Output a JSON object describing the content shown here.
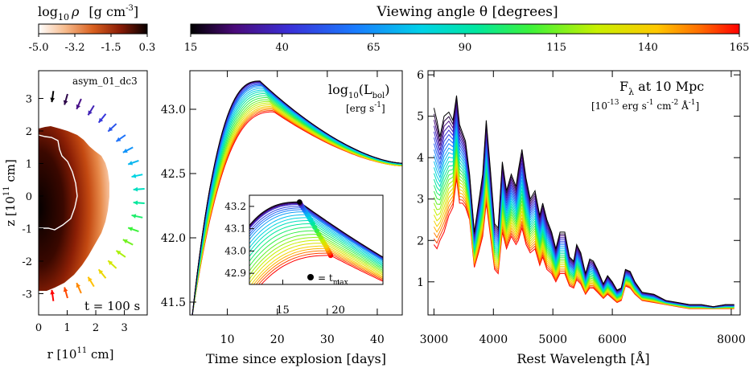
{
  "colorbars": {
    "density": {
      "label_main": "log",
      "label_sub": "10",
      "label_rho": "ρ",
      "label_units": "[g cm",
      "label_exp": "-3",
      "label_close": "]",
      "ticks": [
        "-5.0",
        "-3.2",
        "-1.5",
        "0.3"
      ]
    },
    "angle": {
      "label": "Viewing angle θ   [degrees]",
      "ticks": [
        "15",
        "40",
        "65",
        "90",
        "115",
        "140",
        "165"
      ]
    }
  },
  "panel_left": {
    "model_label": "asym_01_dc3",
    "time_label": "t = 100 s",
    "x_label_main": "r   [10",
    "x_label_exp": "11",
    "x_label_end": " cm]",
    "y_label_main": "z   [10",
    "y_label_exp": "11",
    "y_label_end": " cm]",
    "x_ticks": [
      "0",
      "1",
      "2",
      "3"
    ],
    "y_ticks": [
      "3",
      "2",
      "1",
      "0",
      "-1",
      "-2",
      "-3"
    ]
  },
  "panel_middle": {
    "x_label": "Time since explosion   [days]",
    "title_main": "log",
    "title_sub1": "10",
    "title_mid": "(L",
    "title_sub2": "bol",
    "title_end": ")",
    "units_main": "[erg s",
    "units_exp": "-1",
    "units_end": "]",
    "inset_legend_main": "= t",
    "inset_legend_sub": "max"
  },
  "panel_right": {
    "x_label": "Rest Wavelength   [Å]",
    "title_main": "F",
    "title_sub": "λ",
    "title_end": " at 10 Mpc",
    "units_main": "[10",
    "units_e1": "-13",
    "units_mid1": " erg s",
    "units_e2": "-1",
    "units_mid2": " cm",
    "units_e3": "-2",
    "units_mid3": " Å",
    "units_e4": "-1",
    "units_end": "]"
  },
  "chart_data": [
    {
      "type": "line",
      "title": "log10(Lbol) [erg s-1]",
      "xlabel": "Time since explosion [days]",
      "ylabel": "",
      "xlim": [
        2.5,
        45
      ],
      "ylim": [
        41.4,
        43.3
      ],
      "x_ticks": [
        10,
        20,
        30,
        40
      ],
      "y_ticks": [
        41.5,
        42.0,
        42.5,
        43.0
      ],
      "series_description": "viewing angles 15 to 165 degrees",
      "angles": [
        15,
        40,
        65,
        90,
        115,
        140,
        165
      ],
      "peak_log_l": [
        43.22,
        43.21,
        43.18,
        43.13,
        43.07,
        43.02,
        42.98
      ],
      "peak_time_days": [
        16.5,
        16.6,
        17.0,
        17.6,
        18.3,
        18.9,
        19.3
      ],
      "late_log_l_at_45d": [
        42.58,
        42.58,
        42.58,
        42.57,
        42.57,
        42.56,
        42.56
      ]
    },
    {
      "type": "line",
      "title": "inset",
      "xlim": [
        12,
        24
      ],
      "ylim": [
        42.85,
        43.25
      ],
      "x_ticks": [
        15,
        20
      ],
      "y_ticks": [
        42.9,
        43.0,
        43.1,
        43.2
      ]
    },
    {
      "type": "line",
      "title": "Fλ at 10 Mpc [10-13 erg s-1 cm-2 Å-1]",
      "xlabel": "Rest Wavelength [Å]",
      "xlim": [
        2900,
        8150
      ],
      "ylim": [
        0.2,
        6.1
      ],
      "x_ticks": [
        3000,
        4000,
        5000,
        6000,
        8000
      ],
      "y_ticks": [
        1,
        2,
        3,
        4,
        5,
        6
      ],
      "spectrum_15deg": {
        "x": [
          3000,
          3050,
          3100,
          3170,
          3250,
          3320,
          3380,
          3430,
          3480,
          3530,
          3600,
          3680,
          3750,
          3820,
          3880,
          3950,
          4020,
          4080,
          4150,
          4220,
          4300,
          4380,
          4420,
          4480,
          4550,
          4620,
          4700,
          4780,
          4830,
          4900,
          4980,
          5050,
          5120,
          5200,
          5280,
          5350,
          5400,
          5470,
          5550,
          5620,
          5680,
          5750,
          5850,
          5920,
          6000,
          6080,
          6150,
          6220,
          6300,
          6380,
          6500,
          6700,
          6900,
          7100,
          7300,
          7500,
          7700,
          7900,
          8050
        ],
        "y": [
          5.2,
          4.9,
          4.5,
          5.0,
          5.1,
          4.9,
          5.5,
          4.8,
          4.6,
          4.4,
          3.6,
          2.2,
          2.9,
          3.6,
          4.9,
          3.7,
          2.4,
          2.3,
          3.9,
          3.2,
          3.6,
          3.3,
          3.7,
          4.2,
          3.5,
          3.0,
          3.2,
          2.6,
          2.9,
          2.5,
          2.2,
          1.8,
          2.2,
          2.2,
          1.6,
          1.5,
          1.9,
          1.7,
          1.2,
          1.55,
          1.5,
          1.3,
          0.95,
          1.15,
          1.0,
          0.8,
          0.85,
          1.3,
          1.25,
          1.0,
          0.75,
          0.7,
          0.55,
          0.5,
          0.45,
          0.45,
          0.4,
          0.45,
          0.45
        ]
      },
      "spectrum_165deg": {
        "x": [
          3000,
          3050,
          3100,
          3170,
          3250,
          3320,
          3380,
          3430,
          3480,
          3530,
          3600,
          3680,
          3750,
          3820,
          3880,
          3950,
          4020,
          4080,
          4150,
          4220,
          4300,
          4380,
          4420,
          4480,
          4550,
          4620,
          4700,
          4780,
          4830,
          4900,
          4980,
          5050,
          5120,
          5200,
          5280,
          5350,
          5400,
          5470,
          5550,
          5620,
          5680,
          5750,
          5850,
          5920,
          6000,
          6080,
          6150,
          6220,
          6300,
          6380,
          6500,
          6700,
          6900,
          7100,
          7300,
          7500,
          7700,
          7900,
          8050
        ],
        "y": [
          1.9,
          1.8,
          2.0,
          2.2,
          2.6,
          2.8,
          3.5,
          2.9,
          2.9,
          2.8,
          2.5,
          1.35,
          1.7,
          2.1,
          2.9,
          2.1,
          1.3,
          1.2,
          2.2,
          1.8,
          2.1,
          1.9,
          2.0,
          2.3,
          1.9,
          1.7,
          1.8,
          1.4,
          1.6,
          1.3,
          1.2,
          1.0,
          1.2,
          1.2,
          0.9,
          0.85,
          1.05,
          0.95,
          0.7,
          0.85,
          0.85,
          0.75,
          0.6,
          0.7,
          0.6,
          0.5,
          0.55,
          0.9,
          0.85,
          0.7,
          0.55,
          0.5,
          0.45,
          0.4,
          0.35,
          0.35,
          0.35,
          0.35,
          0.35
        ]
      }
    }
  ]
}
